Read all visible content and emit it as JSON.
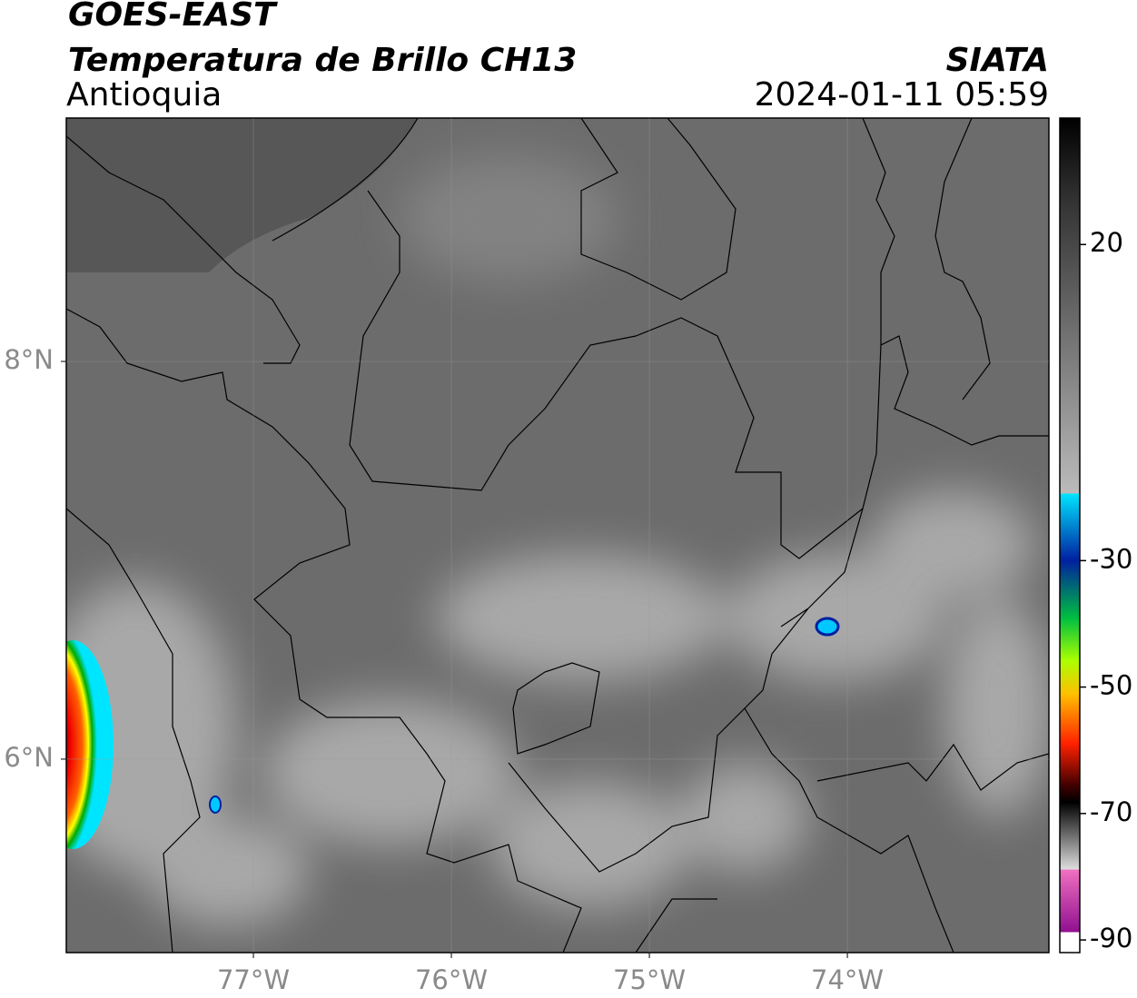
{
  "header": {
    "title": "GOES-EAST",
    "subtitle": "Temperatura de Brillo CH13",
    "region": "Antioquia",
    "source": "SIATA",
    "datetime": "2024-01-11 05:59"
  },
  "map": {
    "lon_range": [
      -77.945,
      -72.982
    ],
    "lat_range": [
      5.027,
      9.224
    ],
    "lon_ticks": [
      {
        "value": -77,
        "label": "77°W"
      },
      {
        "value": -76,
        "label": "76°W"
      },
      {
        "value": -75,
        "label": "75°W"
      },
      {
        "value": -74,
        "label": "74°W"
      }
    ],
    "lat_ticks": [
      {
        "value": 8,
        "label": "8°N"
      },
      {
        "value": 6,
        "label": "6°N"
      }
    ]
  },
  "colorbar": {
    "range": [
      -92,
      40
    ],
    "ticks": [
      20,
      -30,
      -50,
      -70,
      -90
    ]
  }
}
